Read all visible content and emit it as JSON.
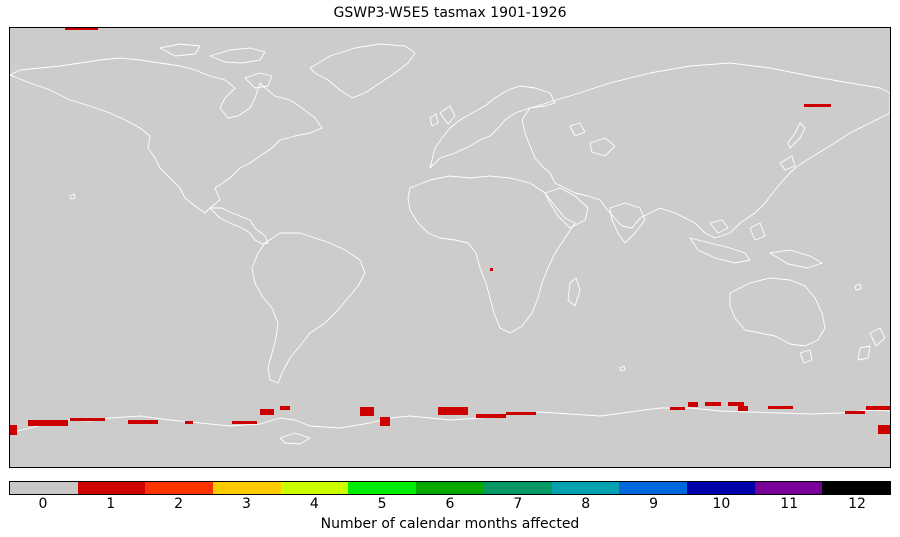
{
  "title": "GSWP3-W5E5 tasmax 1901-1926",
  "map": {
    "background_color": "#cccccc",
    "coastline_color": "#ffffff",
    "affected_color": "#cc0000",
    "affected_value": 1
  },
  "colorbar": {
    "label": "Number of calendar months affected",
    "ticks": [
      "0",
      "1",
      "2",
      "3",
      "4",
      "5",
      "6",
      "7",
      "8",
      "9",
      "10",
      "11",
      "12"
    ],
    "colors": [
      "#c8c8c8",
      "#cc0000",
      "#ff3300",
      "#ffcc00",
      "#ccff00",
      "#00ee00",
      "#00aa00",
      "#009966",
      "#00a0b0",
      "#0066dd",
      "#0000aa",
      "#770099",
      "#000000"
    ]
  }
}
